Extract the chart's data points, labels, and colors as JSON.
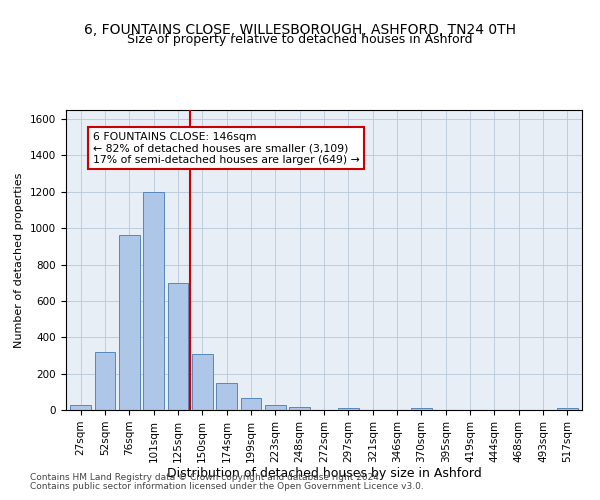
{
  "title1": "6, FOUNTAINS CLOSE, WILLESBOROUGH, ASHFORD, TN24 0TH",
  "title2": "Size of property relative to detached houses in Ashford",
  "xlabel": "Distribution of detached houses by size in Ashford",
  "ylabel": "Number of detached properties",
  "categories": [
    "27sqm",
    "52sqm",
    "76sqm",
    "101sqm",
    "125sqm",
    "150sqm",
    "174sqm",
    "199sqm",
    "223sqm",
    "248sqm",
    "272sqm",
    "297sqm",
    "321sqm",
    "346sqm",
    "370sqm",
    "395sqm",
    "419sqm",
    "444sqm",
    "468sqm",
    "493sqm",
    "517sqm"
  ],
  "values": [
    25,
    320,
    960,
    1200,
    700,
    310,
    150,
    65,
    25,
    15,
    0,
    10,
    0,
    0,
    12,
    0,
    0,
    0,
    0,
    0,
    10
  ],
  "bar_color": "#aec6e8",
  "bar_edge_color": "#5588bb",
  "vline_color": "#cc0000",
  "ylim": [
    0,
    1650
  ],
  "yticks": [
    0,
    200,
    400,
    600,
    800,
    1000,
    1200,
    1400,
    1600
  ],
  "annotation_text": "6 FOUNTAINS CLOSE: 146sqm\n← 82% of detached houses are smaller (3,109)\n17% of semi-detached houses are larger (649) →",
  "annotation_box_color": "#ffffff",
  "annotation_box_edge": "#cc0000",
  "footer1": "Contains HM Land Registry data © Crown copyright and database right 2024.",
  "footer2": "Contains public sector information licensed under the Open Government Licence v3.0.",
  "plot_bg_color": "#e8eef5",
  "title1_fontsize": 10,
  "title2_fontsize": 9,
  "xlabel_fontsize": 9,
  "ylabel_fontsize": 8,
  "tick_fontsize": 7.5,
  "footer_fontsize": 6.5
}
